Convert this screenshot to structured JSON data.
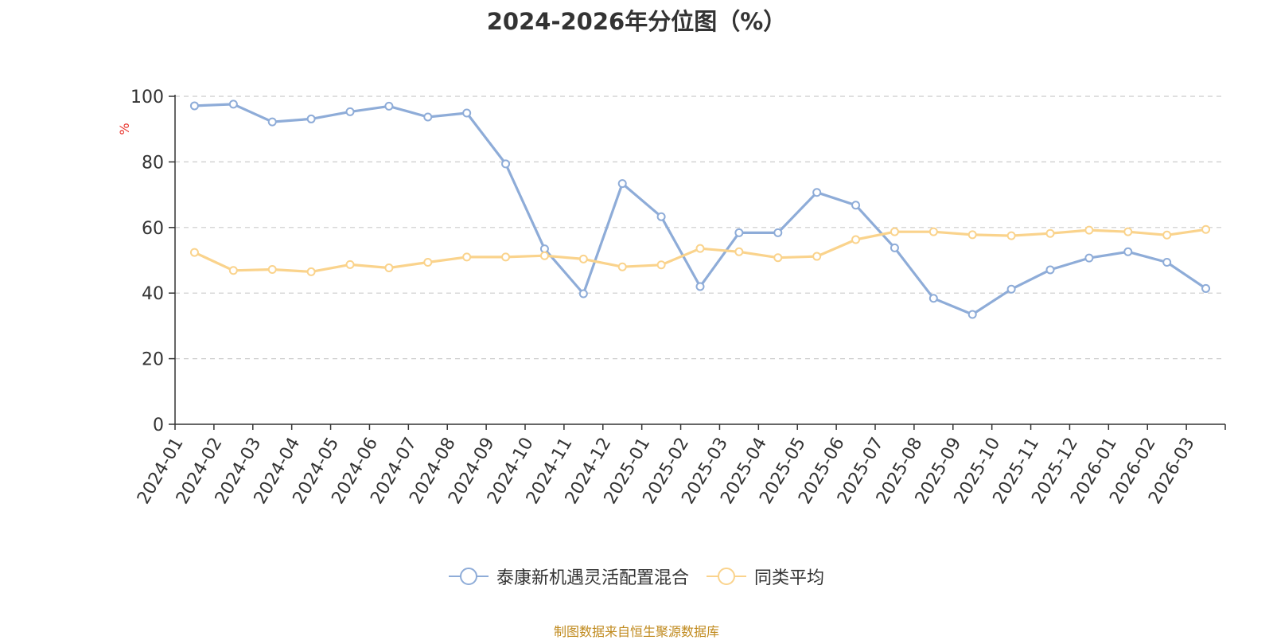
{
  "chart_data": {
    "type": "line",
    "title": "2024-2026年分位图（%）",
    "ylabel": "%",
    "ylim": [
      0,
      100
    ],
    "yticks": [
      0,
      20,
      40,
      60,
      80,
      100
    ],
    "grid": true,
    "legend_position": "bottom",
    "categories": [
      "2024-01",
      "2024-02",
      "2024-03",
      "2024-04",
      "2024-05",
      "2024-06",
      "2024-07",
      "2024-08",
      "2024-09",
      "2024-10",
      "2024-11",
      "2024-12",
      "2025-01",
      "2025-02",
      "2025-03",
      "2025-04",
      "2025-05",
      "2025-06",
      "2025-07",
      "2025-08",
      "2025-09",
      "2025-10",
      "2025-11",
      "2025-12",
      "2026-01",
      "2026-02",
      "2026-03"
    ],
    "series": [
      {
        "name": "泰康新机遇灵活配置混合",
        "color": "#8eacd8",
        "values": [
          97.1,
          97.6,
          92.2,
          93.1,
          95.3,
          97.0,
          93.7,
          94.9,
          79.4,
          53.5,
          39.8,
          73.4,
          63.3,
          42.0,
          58.4,
          58.4,
          70.7,
          66.8,
          53.8,
          38.4,
          33.5,
          41.2,
          47.1,
          50.7,
          52.6,
          49.4,
          41.4
        ]
      },
      {
        "name": "同类平均",
        "color": "#fad38c",
        "values": [
          52.4,
          46.9,
          47.2,
          46.5,
          48.7,
          47.7,
          49.4,
          51.0,
          51.0,
          51.4,
          50.4,
          48.0,
          48.6,
          53.6,
          52.6,
          50.8,
          51.2,
          56.3,
          58.7,
          58.7,
          57.8,
          57.5,
          58.2,
          59.2,
          58.7,
          57.7,
          59.4
        ]
      }
    ]
  },
  "source": "制图数据来自恒生聚源数据库"
}
